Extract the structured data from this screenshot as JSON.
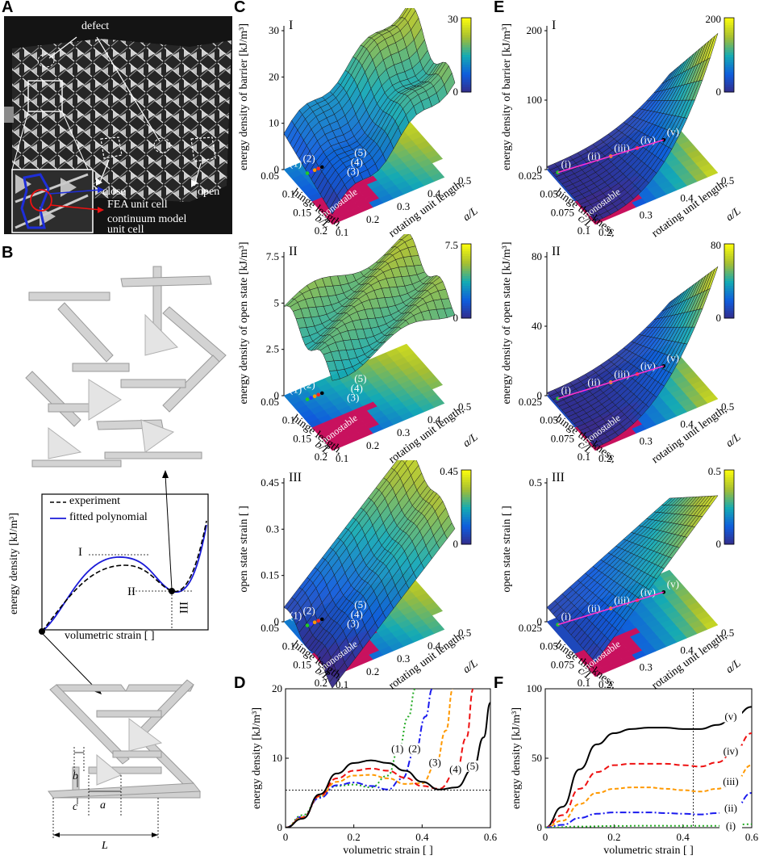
{
  "panel_letters": {
    "a": "A",
    "b": "B",
    "c": "C",
    "d": "D",
    "e": "E",
    "f": "F"
  },
  "photo": {
    "defect": "defect",
    "close": "close",
    "open": "open",
    "fea": "FEA unit cell",
    "cont1": "continuum model",
    "cont2": "unit cell"
  },
  "panel_b": {
    "legend_experiment": "experiment",
    "legend_fit": "fitted polynomial",
    "ylabel": "energy density [kJ/m³]",
    "xlabel": "volumetric strain [ ]",
    "mark_I": "I",
    "mark_II": "II",
    "mark_III": "III",
    "dim_b": "b",
    "dim_c": "c",
    "dim_a": "a",
    "dim_L": "L"
  },
  "panel_c": {
    "x_label1": "hinge length,",
    "x_label2": "b/L",
    "y_label1": "rotating unit length,",
    "y_label2": "a/L",
    "x_ticks": [
      "0.05",
      "0.1",
      "0.15",
      "0.2"
    ],
    "y_ticks": [
      "0.1",
      "0.2",
      "0.3",
      "0.4",
      "0.5"
    ],
    "monostable": "monostable",
    "points": [
      "(1)",
      "(2)",
      "(3)",
      "(4)",
      "(5)"
    ],
    "subplots": [
      {
        "roman": "I",
        "zlabel": "energy density of barrier [kJ/m³]",
        "zticks": [
          "0",
          "10",
          "20",
          "30"
        ],
        "cbar_max": "30",
        "cbar_min": "0"
      },
      {
        "roman": "II",
        "zlabel": "energy density of open state [kJ/m³]",
        "zticks": [
          "0",
          "2.5",
          "5",
          "7.5"
        ],
        "cbar_max": "7.5",
        "cbar_min": "0"
      },
      {
        "roman": "III",
        "zlabel": "open state strain [ ]",
        "zticks": [
          "0",
          "0.15",
          "0.3",
          "0.45"
        ],
        "cbar_max": "0.45",
        "cbar_min": "0"
      }
    ]
  },
  "panel_e": {
    "x_label1": "hinge thickness,",
    "x_label2": "c/L",
    "y_label1": "rotating unit length,",
    "y_label2": "a/L",
    "x_ticks": [
      "0.025",
      "0.05",
      "0.075",
      "0.1"
    ],
    "y_ticks": [
      "0.2",
      "0.3",
      "0.4",
      "0.5"
    ],
    "monostable": "monostable",
    "points": [
      "(i)",
      "(ii)",
      "(iii)",
      "(iv)",
      "(v)"
    ],
    "subplots": [
      {
        "roman": "I",
        "zlabel": "energy density of barrier [kJ/m³]",
        "zticks": [
          "0",
          "100",
          "200"
        ],
        "cbar_max": "200",
        "cbar_min": "0"
      },
      {
        "roman": "II",
        "zlabel": "energy density of open state [kJ/m³]",
        "zticks": [
          "0",
          "40",
          "80"
        ],
        "cbar_max": "80",
        "cbar_min": "0"
      },
      {
        "roman": "III",
        "zlabel": "open state strain [ ]",
        "zticks": [
          "0",
          "0.5"
        ],
        "cbar_max": "0.5",
        "cbar_min": "0"
      }
    ]
  },
  "chart_data": [
    {
      "panel": "D",
      "type": "line",
      "xlabel": "volumetric strain [ ]",
      "ylabel": "energy density [kJ/m³]",
      "xlim": [
        0,
        0.6
      ],
      "ylim": [
        0,
        20
      ],
      "xticks": [
        "0",
        "0.2",
        "0.4",
        "0.6"
      ],
      "yticks": [
        "0",
        "10",
        "20"
      ],
      "hline": 5.4,
      "series": [
        {
          "name": "(1)",
          "color": "#22aa22",
          "dash": "2,3",
          "x": [
            0,
            0.05,
            0.1,
            0.15,
            0.2,
            0.25,
            0.3,
            0.33,
            0.36,
            0.38
          ],
          "y": [
            0,
            1.8,
            4.5,
            6.0,
            6.2,
            5.8,
            7.5,
            11,
            16,
            20
          ]
        },
        {
          "name": "(2)",
          "color": "#1a1aee",
          "dash": "8,3,2,3",
          "x": [
            0,
            0.05,
            0.1,
            0.15,
            0.2,
            0.25,
            0.3,
            0.34,
            0.38,
            0.41,
            0.43
          ],
          "y": [
            0,
            1.6,
            4.3,
            6.1,
            6.5,
            6.0,
            5.5,
            7,
            11,
            16,
            20
          ]
        },
        {
          "name": "(3)",
          "color": "#ff9900",
          "dash": "5,3",
          "x": [
            0,
            0.05,
            0.1,
            0.15,
            0.2,
            0.25,
            0.3,
            0.35,
            0.4,
            0.44,
            0.47,
            0.49
          ],
          "y": [
            0,
            1.5,
            4.5,
            6.6,
            7.5,
            7.6,
            7.1,
            6.3,
            6.4,
            9,
            14,
            20
          ]
        },
        {
          "name": "(4)",
          "color": "#ee1111",
          "dash": "7,4",
          "x": [
            0,
            0.05,
            0.1,
            0.15,
            0.2,
            0.25,
            0.3,
            0.35,
            0.4,
            0.45,
            0.5,
            0.53,
            0.55
          ],
          "y": [
            0,
            1.4,
            4.6,
            7.1,
            8.2,
            8.5,
            8.2,
            7.2,
            6.0,
            5.6,
            8,
            13,
            20
          ]
        },
        {
          "name": "(5)",
          "color": "#000000",
          "dash": "",
          "x": [
            0,
            0.05,
            0.1,
            0.15,
            0.2,
            0.25,
            0.3,
            0.35,
            0.4,
            0.45,
            0.5,
            0.55,
            0.58,
            0.6
          ],
          "y": [
            0,
            1.3,
            4.8,
            7.8,
            9.3,
            9.7,
            9.3,
            8.2,
            6.6,
            5.5,
            5.8,
            8.5,
            13,
            18
          ]
        }
      ]
    },
    {
      "panel": "F",
      "type": "line",
      "xlabel": "volumetric strain [ ]",
      "ylabel": "energy density [kJ/m³]",
      "xlim": [
        0,
        0.6
      ],
      "ylim": [
        0,
        100
      ],
      "xticks": [
        "0",
        "0.2",
        "0.4",
        "0.6"
      ],
      "yticks": [
        "0",
        "50",
        "100"
      ],
      "vline": 0.43,
      "series": [
        {
          "name": "(v)",
          "color": "#000000",
          "dash": "",
          "x": [
            0,
            0.05,
            0.1,
            0.15,
            0.2,
            0.25,
            0.3,
            0.35,
            0.4,
            0.45,
            0.5,
            0.55,
            0.6
          ],
          "y": [
            0,
            15,
            42,
            60,
            68,
            71,
            72,
            72,
            71,
            71,
            74,
            80,
            87
          ]
        },
        {
          "name": "(iv)",
          "color": "#ee1111",
          "dash": "7,4",
          "x": [
            0,
            0.05,
            0.1,
            0.15,
            0.2,
            0.25,
            0.3,
            0.35,
            0.4,
            0.45,
            0.5,
            0.55,
            0.6
          ],
          "y": [
            0,
            9,
            28,
            40,
            45,
            46,
            46,
            46,
            45,
            44,
            47,
            55,
            68
          ]
        },
        {
          "name": "(iii)",
          "color": "#ff9900",
          "dash": "5,3",
          "x": [
            0,
            0.05,
            0.1,
            0.15,
            0.2,
            0.25,
            0.3,
            0.35,
            0.4,
            0.45,
            0.5,
            0.55,
            0.6
          ],
          "y": [
            0,
            5,
            17,
            25,
            28,
            29,
            29,
            28,
            27,
            26,
            28,
            33,
            45
          ]
        },
        {
          "name": "(ii)",
          "color": "#1a1aee",
          "dash": "8,3,2,3",
          "x": [
            0,
            0.05,
            0.1,
            0.15,
            0.2,
            0.25,
            0.3,
            0.35,
            0.4,
            0.45,
            0.5,
            0.55,
            0.6
          ],
          "y": [
            0,
            2,
            7,
            10,
            11,
            11,
            11,
            10.5,
            10,
            9.5,
            10.5,
            14,
            25
          ]
        },
        {
          "name": "(i)",
          "color": "#22aa22",
          "dash": "2,3",
          "x": [
            0,
            0.1,
            0.2,
            0.3,
            0.4,
            0.5,
            0.6
          ],
          "y": [
            0,
            0.8,
            1.2,
            1.4,
            1.3,
            1.3,
            2.5
          ]
        }
      ]
    }
  ]
}
